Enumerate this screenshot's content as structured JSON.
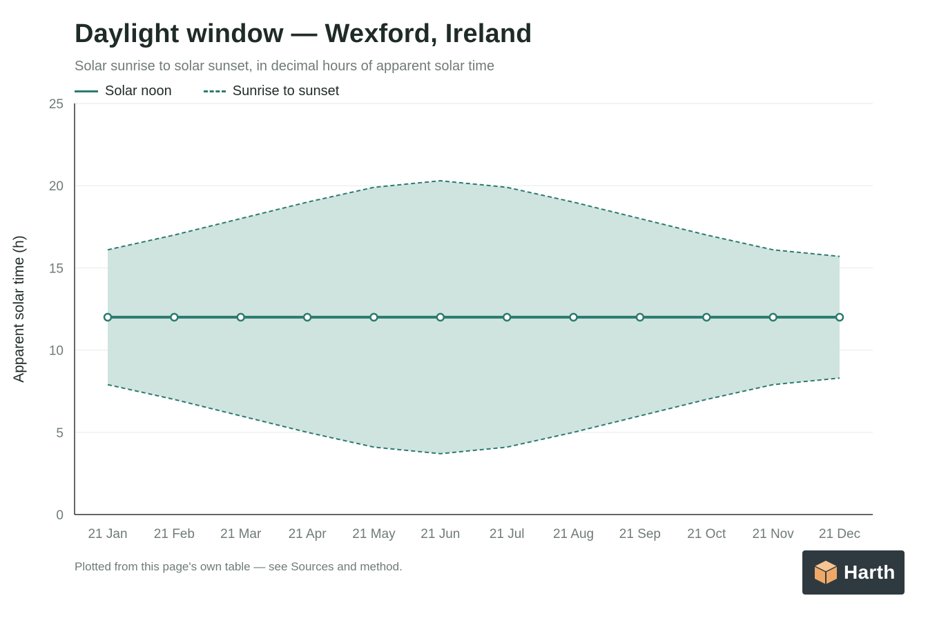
{
  "header": {
    "title": "Daylight window — Wexford, Ireland",
    "subtitle": "Solar sunrise to solar sunset, in decimal hours of apparent solar time"
  },
  "legend": {
    "noon_label": "Solar noon",
    "window_label": "Sunrise to sunset"
  },
  "footer": {
    "note": "Plotted from this page's own table — see Sources and method."
  },
  "badge": {
    "brand": "Harth"
  },
  "colors": {
    "accent": "#2b7a6f",
    "band_fill": "#cfe4df",
    "axis": "#333333",
    "grid": "#e6e9e8",
    "tick_text": "#6f7b78",
    "badge_bg": "#2e3a40",
    "logo": "#f0a868"
  },
  "chart_data": {
    "type": "area",
    "title": "Daylight window — Wexford, Ireland",
    "subtitle": "Solar sunrise to solar sunset, in decimal hours of apparent solar time",
    "xlabel": "",
    "ylabel": "Apparent solar time (h)",
    "categories": [
      "21 Jan",
      "21 Feb",
      "21 Mar",
      "21 Apr",
      "21 May",
      "21 Jun",
      "21 Jul",
      "21 Aug",
      "21 Sep",
      "21 Oct",
      "21 Nov",
      "21 Dec"
    ],
    "ylim": [
      0,
      25
    ],
    "yticks": [
      0,
      5,
      10,
      15,
      20,
      25
    ],
    "grid": true,
    "legend_position": "top-left",
    "series": [
      {
        "name": "Solar noon",
        "style": "solid",
        "values": [
          12,
          12,
          12,
          12,
          12,
          12,
          12,
          12,
          12,
          12,
          12,
          12
        ]
      },
      {
        "name": "Sunrise to sunset",
        "style": "dashed band",
        "sunrise": [
          7.9,
          7.0,
          6.0,
          5.0,
          4.1,
          3.7,
          4.1,
          5.0,
          6.0,
          7.0,
          7.9,
          8.3
        ],
        "sunset": [
          16.1,
          17.0,
          18.0,
          19.0,
          19.9,
          20.3,
          19.9,
          19.0,
          18.0,
          17.0,
          16.1,
          15.7
        ]
      }
    ]
  }
}
